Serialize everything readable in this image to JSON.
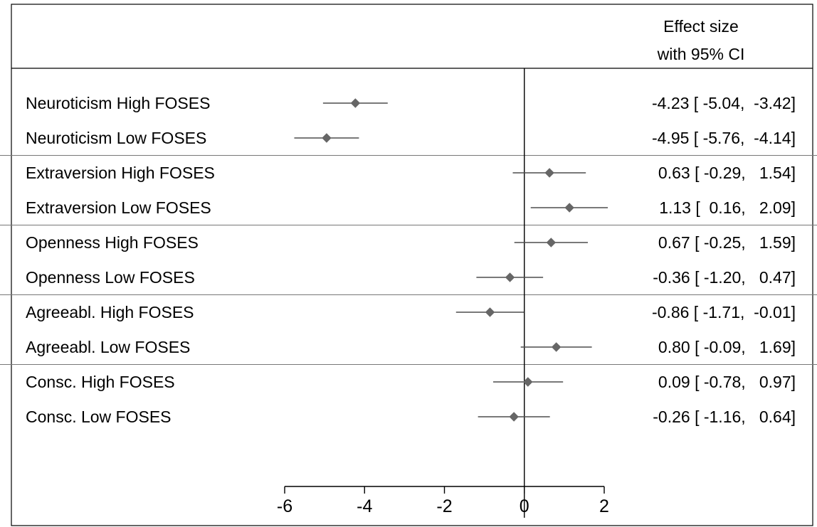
{
  "chart_data": {
    "type": "forest",
    "header": {
      "line1": "Effect size",
      "line2": "with 95% CI"
    },
    "xlim": [
      -6,
      2
    ],
    "xticks": [
      -6,
      -4,
      -2,
      0,
      2
    ],
    "xtick_labels": [
      "-6",
      "-4",
      "-2",
      "0",
      "2"
    ],
    "reference_line": 0,
    "grid": false,
    "group_dividers_after_rows": [
      1,
      3,
      5,
      7
    ],
    "colors": {
      "marker": "#666666",
      "ci_line": "#4d4d4d",
      "axis": "#000000",
      "divider": "#777777"
    },
    "rows": [
      {
        "label": "Neuroticism High FOSES",
        "estimate": -4.23,
        "lower": -5.04,
        "upper": -3.42,
        "ci_text": "-4.23 [ -5.04,  -3.42]"
      },
      {
        "label": "Neuroticism Low FOSES",
        "estimate": -4.95,
        "lower": -5.76,
        "upper": -4.14,
        "ci_text": "-4.95 [ -5.76,  -4.14]"
      },
      {
        "label": "Extraversion High FOSES",
        "estimate": 0.63,
        "lower": -0.29,
        "upper": 1.54,
        "ci_text": "0.63 [ -0.29,   1.54]"
      },
      {
        "label": "Extraversion Low FOSES",
        "estimate": 1.13,
        "lower": 0.16,
        "upper": 2.09,
        "ci_text": "1.13 [  0.16,   2.09]"
      },
      {
        "label": "Openness High FOSES",
        "estimate": 0.67,
        "lower": -0.25,
        "upper": 1.59,
        "ci_text": "0.67 [ -0.25,   1.59]"
      },
      {
        "label": "Openness Low FOSES",
        "estimate": -0.36,
        "lower": -1.2,
        "upper": 0.47,
        "ci_text": "-0.36 [ -1.20,   0.47]"
      },
      {
        "label": "Agreeabl. High FOSES",
        "estimate": -0.86,
        "lower": -1.71,
        "upper": -0.01,
        "ci_text": "-0.86 [ -1.71,  -0.01]"
      },
      {
        "label": "Agreeabl. Low FOSES",
        "estimate": 0.8,
        "lower": -0.09,
        "upper": 1.69,
        "ci_text": "0.80 [ -0.09,   1.69]"
      },
      {
        "label": "Consc. High FOSES",
        "estimate": 0.09,
        "lower": -0.78,
        "upper": 0.97,
        "ci_text": "0.09 [ -0.78,   0.97]"
      },
      {
        "label": "Consc. Low FOSES",
        "estimate": -0.26,
        "lower": -1.16,
        "upper": 0.64,
        "ci_text": "-0.26 [ -1.16,   0.64]"
      }
    ]
  }
}
